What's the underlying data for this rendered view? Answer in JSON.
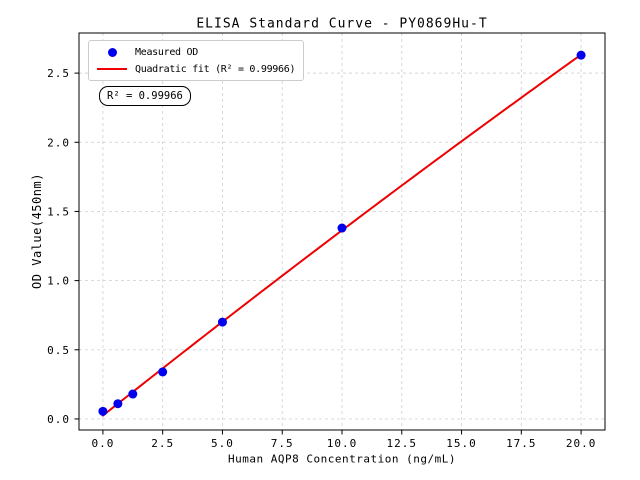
{
  "title": "ELISA Standard Curve - PY0869Hu-T",
  "legend": {
    "measured": "Measured OD",
    "fit": "Quadratic fit (R² = 0.99966)"
  },
  "annotation": "R² = 0.99966",
  "colors": {
    "measured": "#0000ee",
    "fit": "#ee0000",
    "grid": "#d5d5d5",
    "frame": "#000000"
  },
  "chart_data": {
    "type": "scatter",
    "title": "ELISA Standard Curve - PY0869Hu-T",
    "xlabel": "Human AQP8 Concentration (ng/mL)",
    "ylabel": "OD Value(450nm)",
    "x": [
      0,
      0.625,
      1.25,
      2.5,
      5,
      10,
      20
    ],
    "series": [
      {
        "name": "Measured OD",
        "type": "scatter",
        "values": [
          0.055,
          0.11,
          0.18,
          0.34,
          0.7,
          1.38,
          2.63
        ]
      },
      {
        "name": "Quadratic fit (R² = 0.99966)",
        "type": "line",
        "fit": "quadratic",
        "r_squared": 0.99966
      }
    ],
    "xticks": {
      "values": [
        0,
        2.5,
        5,
        7.5,
        10,
        12.5,
        15,
        17.5,
        20
      ],
      "labels": [
        "0.0",
        "2.5",
        "5.0",
        "7.5",
        "10.0",
        "12.5",
        "15.0",
        "17.5",
        "20.0"
      ]
    },
    "yticks": {
      "values": [
        0,
        0.5,
        1.0,
        1.5,
        2.0,
        2.5
      ],
      "labels": [
        "0.0",
        "0.5",
        "1.0",
        "1.5",
        "2.0",
        "2.5"
      ]
    },
    "xlim": [
      -1,
      21
    ],
    "ylim": [
      -0.08,
      2.79
    ],
    "grid": true,
    "legend_position": "upper left"
  }
}
